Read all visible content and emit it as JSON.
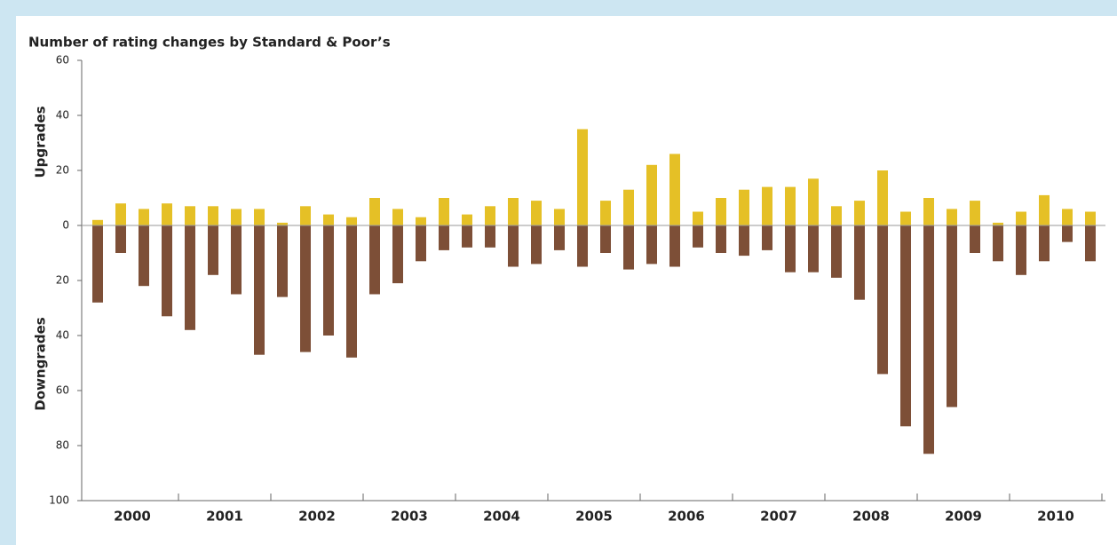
{
  "chart_data": {
    "type": "bar",
    "title": "Number of rating changes by Standard & Poor’s",
    "years": [
      "2000",
      "2001",
      "2002",
      "2003",
      "2004",
      "2005",
      "2006",
      "2007",
      "2008",
      "2009",
      "2010"
    ],
    "categories": [
      null,
      null,
      null,
      null,
      null,
      null,
      null,
      null,
      null,
      null,
      null,
      null,
      null,
      null,
      null,
      null,
      null,
      null,
      null,
      null,
      null,
      null,
      null,
      null,
      null,
      null,
      null,
      null,
      null,
      null,
      null,
      null,
      null,
      null,
      null,
      null,
      null,
      null,
      null,
      null,
      null,
      null,
      null,
      null
    ],
    "series": [
      {
        "name": "Upgrades",
        "color": "#e5c026",
        "values": [
          2,
          8,
          6,
          8,
          7,
          7,
          6,
          6,
          1,
          7,
          4,
          3,
          10,
          6,
          3,
          10,
          4,
          7,
          10,
          9,
          6,
          35,
          9,
          13,
          22,
          26,
          5,
          10,
          13,
          14,
          14,
          17,
          7,
          9,
          20,
          5,
          10,
          6,
          9,
          1,
          5,
          11,
          6,
          5
        ]
      },
      {
        "name": "Downgrades",
        "color": "#7d4f37",
        "values": [
          -28,
          -10,
          -22,
          -33,
          -38,
          -18,
          -25,
          -47,
          -26,
          -46,
          -40,
          -48,
          -25,
          -21,
          -13,
          -9,
          -8,
          -8,
          -15,
          -14,
          -9,
          -15,
          -10,
          -16,
          -14,
          -15,
          -8,
          -10,
          -11,
          -9,
          -17,
          -17,
          -19,
          -27,
          -54,
          -73,
          -83,
          -66,
          -10,
          -13,
          -18,
          -13,
          -6,
          -13
        ]
      }
    ],
    "ylim": [
      -100,
      60
    ],
    "yticks": [
      {
        "value": -100,
        "label": "100"
      },
      {
        "value": -80,
        "label": "80"
      },
      {
        "value": -60,
        "label": "60"
      },
      {
        "value": -40,
        "label": "40"
      },
      {
        "value": -20,
        "label": "20"
      },
      0,
      20,
      40,
      60
    ]
  }
}
